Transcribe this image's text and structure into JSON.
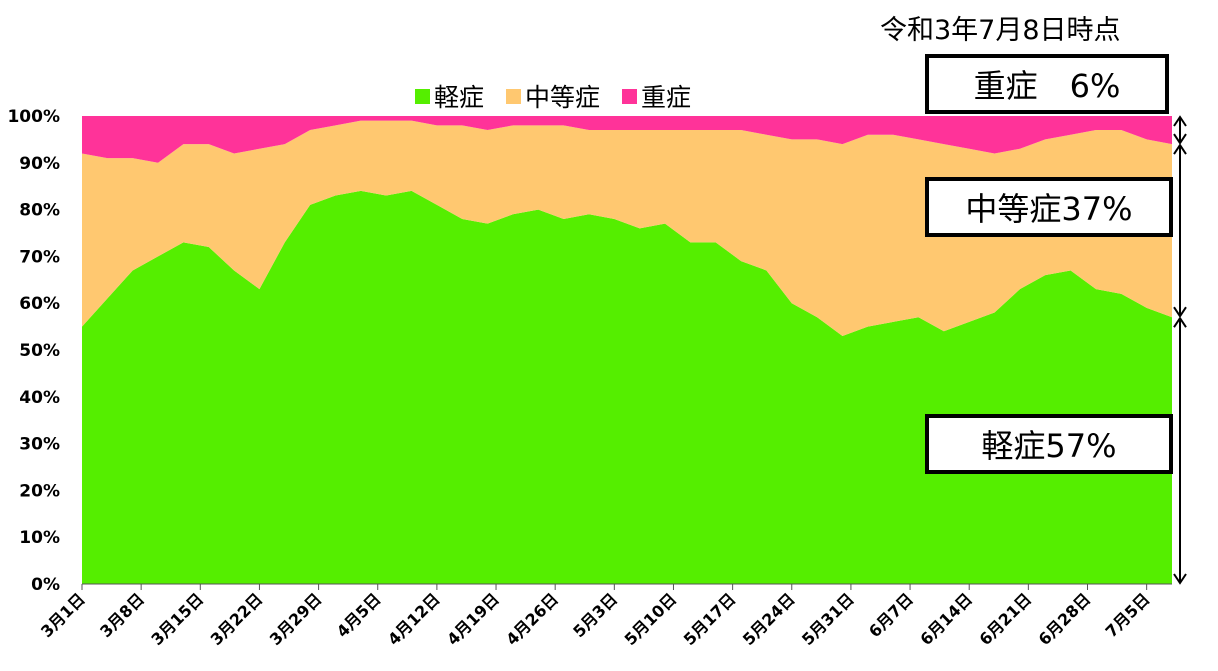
{
  "date_note": "令和3年7月8日時点",
  "colors": {
    "mild": "#55EE00",
    "moderate": "#FFC870",
    "severe": "#FF3399"
  },
  "callouts": {
    "severe": "重症　6%",
    "moderate": "中等症37%",
    "mild": "軽症57%"
  },
  "chart_data": {
    "type": "area",
    "stacked": true,
    "normalized_percent": true,
    "title": "",
    "xlabel": "",
    "ylabel": "",
    "ylim": [
      0,
      100
    ],
    "yticks": [
      "0%",
      "10%",
      "20%",
      "30%",
      "40%",
      "50%",
      "60%",
      "70%",
      "80%",
      "90%",
      "100%"
    ],
    "xtick_labels": [
      "3月1日",
      "3月8日",
      "3月15日",
      "3月22日",
      "3月29日",
      "4月5日",
      "4月12日",
      "4月19日",
      "4月26日",
      "5月3日",
      "5月10日",
      "5月17日",
      "5月24日",
      "5月31日",
      "6月7日",
      "6月14日",
      "6月21日",
      "6月28日",
      "7月5日"
    ],
    "legend": {
      "position": "top-center"
    },
    "grid": false,
    "x": [
      "3月1日",
      "3月4日",
      "3月7日",
      "3月10日",
      "3月13日",
      "3月16日",
      "3月19日",
      "3月22日",
      "3月25日",
      "3月28日",
      "3月31日",
      "4月3日",
      "4月6日",
      "4月9日",
      "4月12日",
      "4月15日",
      "4月18日",
      "4月21日",
      "4月24日",
      "4月27日",
      "4月30日",
      "5月3日",
      "5月6日",
      "5月9日",
      "5月12日",
      "5月15日",
      "5月18日",
      "5月21日",
      "5月24日",
      "5月27日",
      "5月30日",
      "6月2日",
      "6月5日",
      "6月8日",
      "6月11日",
      "6月14日",
      "6月17日",
      "6月20日",
      "6月23日",
      "6月26日",
      "6月29日",
      "7月2日",
      "7月5日",
      "7月8日"
    ],
    "series": [
      {
        "name": "軽症",
        "values": [
          55,
          61,
          67,
          70,
          73,
          72,
          67,
          63,
          73,
          81,
          83,
          84,
          83,
          84,
          81,
          78,
          77,
          79,
          80,
          78,
          79,
          78,
          76,
          77,
          73,
          73,
          69,
          67,
          60,
          57,
          53,
          55,
          56,
          57,
          54,
          56,
          58,
          63,
          66,
          67,
          63,
          62,
          59,
          57
        ]
      },
      {
        "name": "中等症",
        "values": [
          37,
          30,
          24,
          20,
          21,
          22,
          25,
          30,
          21,
          16,
          15,
          15,
          16,
          15,
          17,
          20,
          20,
          19,
          18,
          20,
          18,
          19,
          21,
          20,
          24,
          24,
          28,
          29,
          35,
          38,
          41,
          41,
          40,
          38,
          40,
          37,
          34,
          30,
          29,
          29,
          34,
          35,
          36,
          37
        ]
      },
      {
        "name": "重症",
        "values": [
          8,
          9,
          9,
          10,
          6,
          6,
          8,
          7,
          6,
          3,
          2,
          1,
          1,
          1,
          2,
          2,
          3,
          2,
          2,
          2,
          3,
          3,
          3,
          3,
          3,
          3,
          3,
          4,
          5,
          5,
          6,
          4,
          4,
          5,
          6,
          7,
          8,
          7,
          5,
          4,
          3,
          3,
          5,
          6
        ]
      }
    ]
  }
}
